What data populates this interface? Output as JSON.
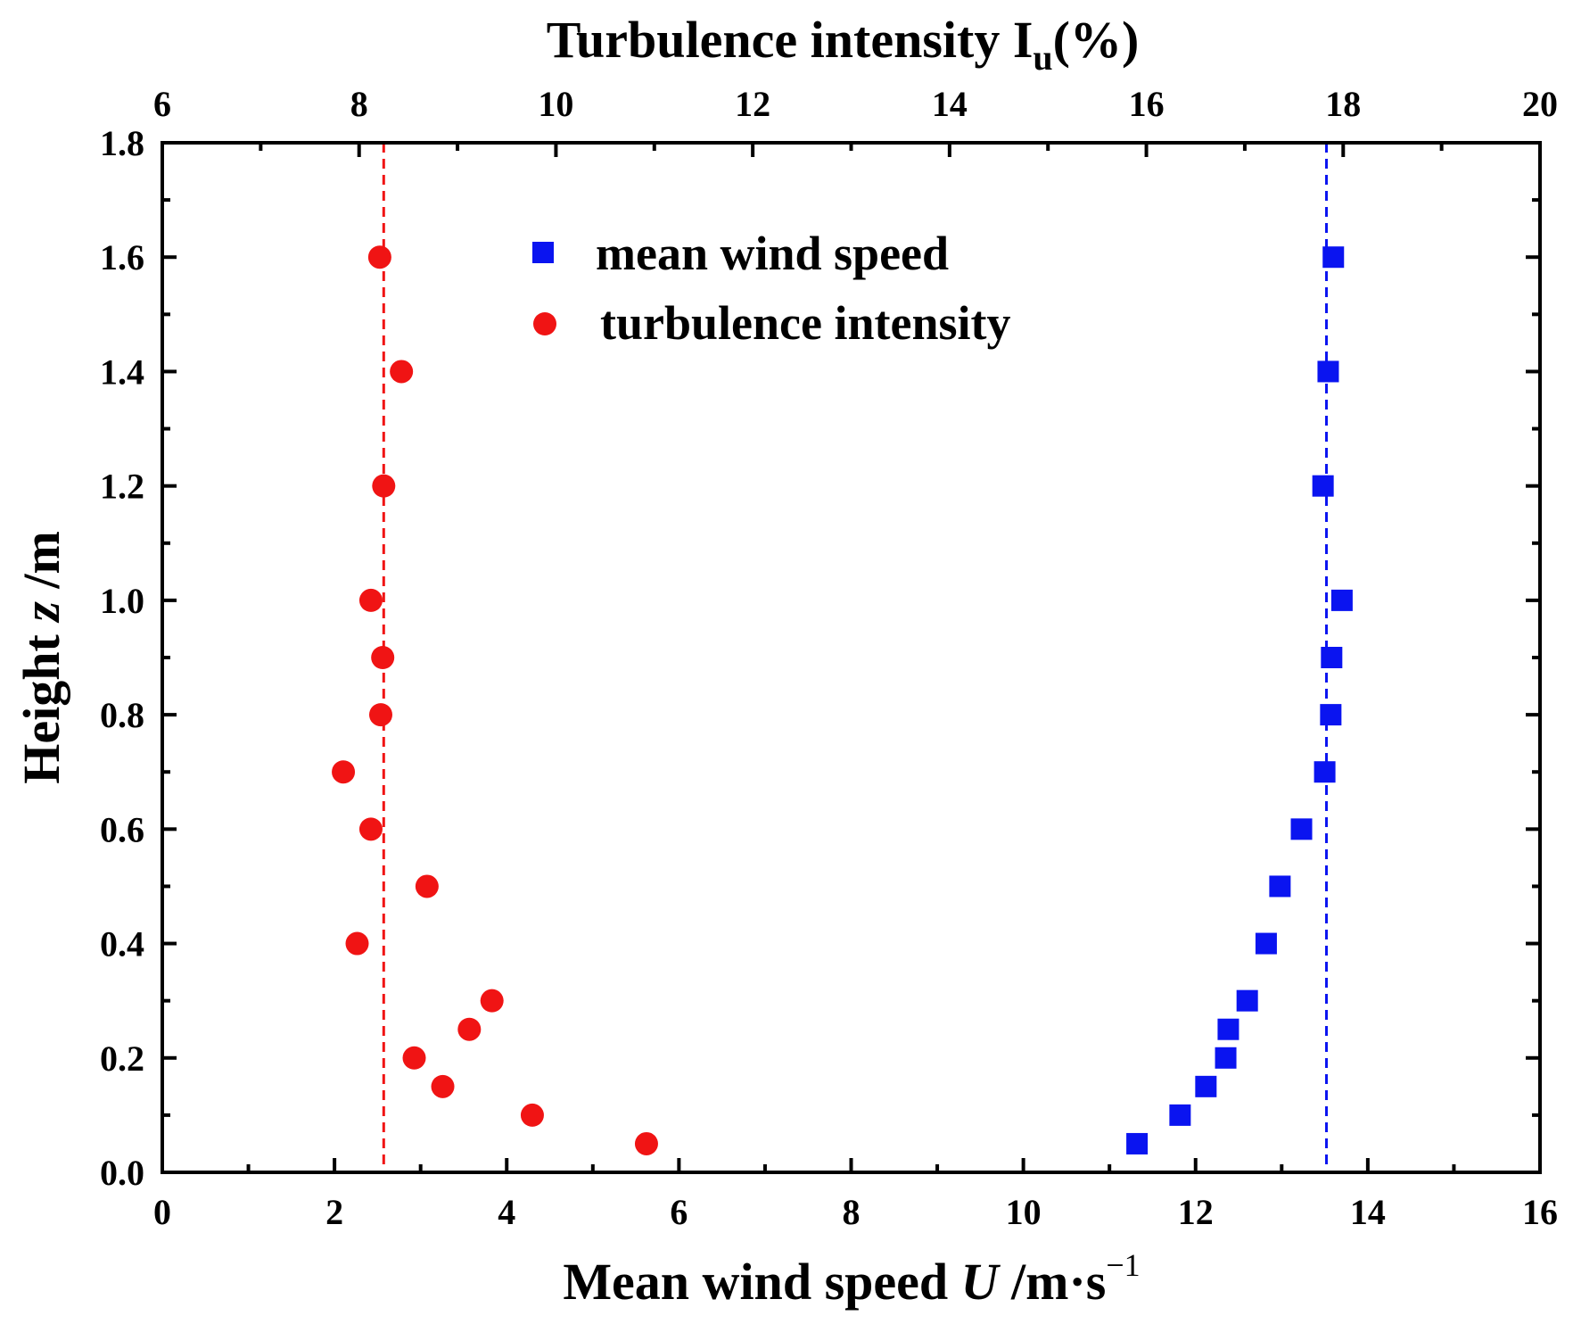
{
  "chart_data": {
    "type": "scatter",
    "title": "",
    "top_axis": {
      "label_main": "Turbulence intensity I",
      "label_sub": "u",
      "label_tail": "(%)",
      "xlim": [
        6,
        20
      ],
      "ticks": [
        "6",
        "8",
        "10",
        "12",
        "14",
        "16",
        "18",
        "20"
      ],
      "tick_values": [
        6,
        8,
        10,
        12,
        14,
        16,
        18,
        20
      ],
      "minor_step": 1
    },
    "bottom_axis": {
      "label_main": "Mean wind speed ",
      "label_italic": "U",
      "label_tail": " /m·s",
      "label_sup": "−1",
      "xlim": [
        0,
        16
      ],
      "ticks": [
        "0",
        "2",
        "4",
        "6",
        "8",
        "10",
        "12",
        "14",
        "16"
      ],
      "tick_values": [
        0,
        2,
        4,
        6,
        8,
        10,
        12,
        14,
        16
      ],
      "minor_step": 1
    },
    "left_axis": {
      "label_main": "Height ",
      "label_italic": "z",
      "label_tail": " /m",
      "ylim": [
        0,
        1.8
      ],
      "ticks": [
        "0.0",
        "0.2",
        "0.4",
        "0.6",
        "0.8",
        "1.0",
        "1.2",
        "1.4",
        "1.6",
        "1.8"
      ],
      "tick_values": [
        0,
        0.2,
        0.4,
        0.6,
        0.8,
        1.0,
        1.2,
        1.4,
        1.6,
        1.8
      ],
      "minor_step": 0.1
    },
    "series": [
      {
        "name": "mean wind speed",
        "axis": "bottom",
        "marker": "square",
        "color": "#0a14f0",
        "points": [
          [
            11.32,
            0.05
          ],
          [
            11.82,
            0.1
          ],
          [
            12.12,
            0.15
          ],
          [
            12.35,
            0.2
          ],
          [
            12.38,
            0.25
          ],
          [
            12.6,
            0.3
          ],
          [
            12.82,
            0.4
          ],
          [
            12.98,
            0.5
          ],
          [
            13.23,
            0.6
          ],
          [
            13.5,
            0.7
          ],
          [
            13.57,
            0.8
          ],
          [
            13.58,
            0.9
          ],
          [
            13.7,
            1.0
          ],
          [
            13.48,
            1.2
          ],
          [
            13.54,
            1.4
          ],
          [
            13.6,
            1.6
          ]
        ]
      },
      {
        "name": "turbulence intensity",
        "axis": "top",
        "marker": "circle",
        "color": "#f01414",
        "points": [
          [
            10.92,
            0.05
          ],
          [
            9.76,
            0.1
          ],
          [
            8.85,
            0.15
          ],
          [
            8.56,
            0.2
          ],
          [
            9.12,
            0.25
          ],
          [
            9.35,
            0.3
          ],
          [
            7.98,
            0.4
          ],
          [
            8.69,
            0.5
          ],
          [
            8.12,
            0.6
          ],
          [
            7.84,
            0.7
          ],
          [
            8.22,
            0.8
          ],
          [
            8.24,
            0.9
          ],
          [
            8.12,
            1.0
          ],
          [
            8.25,
            1.2
          ],
          [
            8.43,
            1.4
          ],
          [
            8.21,
            1.6
          ]
        ]
      }
    ],
    "reference_lines": [
      {
        "axis": "top",
        "value": 8.25,
        "color": "#f01414",
        "style": "dashed"
      },
      {
        "axis": "bottom",
        "value": 13.52,
        "color": "#0a14f0",
        "style": "dashed"
      }
    ],
    "legend": {
      "position": "top-center",
      "entries": [
        {
          "label": "mean wind speed",
          "marker": "square",
          "color": "#0a14f0"
        },
        {
          "label": "turbulence intensity",
          "marker": "circle",
          "color": "#f01414"
        }
      ]
    },
    "grid": false
  }
}
